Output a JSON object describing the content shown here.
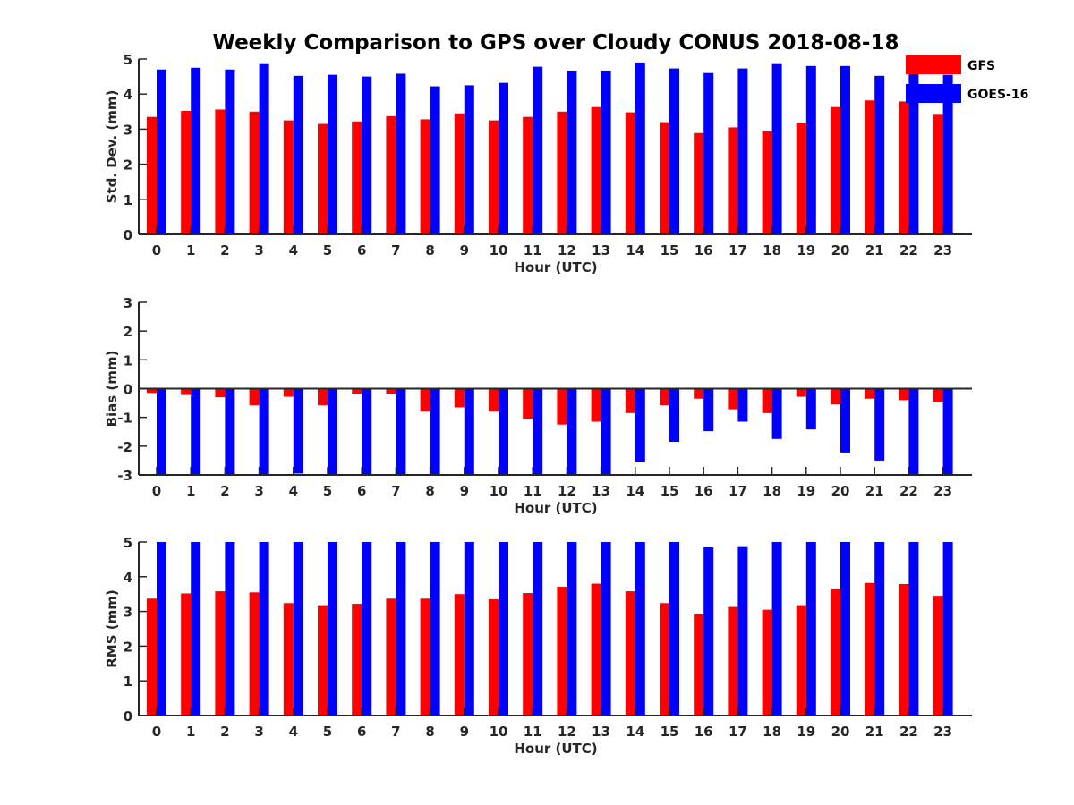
{
  "title": "Weekly Comparison to GPS over Cloudy CONUS 2018-08-18",
  "legend": [
    {
      "label": "GFS",
      "color": "#ff0000"
    },
    {
      "label": "GOES-16",
      "color": "#0000ff"
    }
  ],
  "chart_data": [
    {
      "type": "bar",
      "ylabel": "Std. Dev. (mm)",
      "xlabel": "Hour (UTC)",
      "ylim": [
        0,
        5
      ],
      "yticks": [
        "0",
        "1",
        "2",
        "3",
        "4",
        "5"
      ],
      "categories": [
        "0",
        "1",
        "2",
        "3",
        "4",
        "5",
        "6",
        "7",
        "8",
        "9",
        "10",
        "11",
        "12",
        "13",
        "14",
        "15",
        "16",
        "17",
        "18",
        "19",
        "20",
        "21",
        "22",
        "23"
      ],
      "series": [
        {
          "name": "GFS",
          "values": [
            3.35,
            3.52,
            3.56,
            3.5,
            3.25,
            3.15,
            3.22,
            3.37,
            3.28,
            3.45,
            3.25,
            3.35,
            3.5,
            3.63,
            3.48,
            3.2,
            2.89,
            3.05,
            2.94,
            3.18,
            3.63,
            3.82,
            3.79,
            3.41
          ]
        },
        {
          "name": "GOES-16",
          "values": [
            4.7,
            4.75,
            4.7,
            4.88,
            4.52,
            4.55,
            4.5,
            4.58,
            4.22,
            4.25,
            4.32,
            4.78,
            4.67,
            4.67,
            4.9,
            4.73,
            4.6,
            4.73,
            4.88,
            4.8,
            4.8,
            4.52,
            4.78,
            4.55
          ]
        }
      ]
    },
    {
      "type": "bar",
      "ylabel": "Bias (mm)",
      "xlabel": "Hour (UTC)",
      "ylim": [
        -3,
        3
      ],
      "yticks": [
        "-3",
        "-2",
        "-1",
        "0",
        "1",
        "2",
        "3"
      ],
      "categories": [
        "0",
        "1",
        "2",
        "3",
        "4",
        "5",
        "6",
        "7",
        "8",
        "9",
        "10",
        "11",
        "12",
        "13",
        "14",
        "15",
        "16",
        "17",
        "18",
        "19",
        "20",
        "21",
        "22",
        "23"
      ],
      "series": [
        {
          "name": "GFS",
          "values": [
            -0.15,
            -0.22,
            -0.3,
            -0.58,
            -0.28,
            -0.58,
            -0.18,
            -0.18,
            -0.8,
            -0.65,
            -0.8,
            -1.05,
            -1.25,
            -1.15,
            -0.85,
            -0.58,
            -0.35,
            -0.72,
            -0.85,
            -0.28,
            -0.55,
            -0.35,
            -0.4,
            -0.45
          ]
        },
        {
          "name": "GOES-16",
          "values": [
            -3.0,
            -3.0,
            -3.0,
            -3.0,
            -2.95,
            -3.0,
            -3.0,
            -3.0,
            -3.0,
            -3.0,
            -3.0,
            -3.0,
            -3.0,
            -3.0,
            -2.55,
            -1.85,
            -1.48,
            -1.15,
            -1.75,
            -1.42,
            -2.22,
            -2.5,
            -3.0,
            -3.0
          ]
        }
      ]
    },
    {
      "type": "bar",
      "ylabel": "RMS (mm)",
      "xlabel": "Hour (UTC)",
      "ylim": [
        0,
        5
      ],
      "yticks": [
        "0",
        "1",
        "2",
        "3",
        "4",
        "5"
      ],
      "categories": [
        "0",
        "1",
        "2",
        "3",
        "4",
        "5",
        "6",
        "7",
        "8",
        "9",
        "10",
        "11",
        "12",
        "13",
        "14",
        "15",
        "16",
        "17",
        "18",
        "19",
        "20",
        "21",
        "22",
        "23"
      ],
      "series": [
        {
          "name": "GFS",
          "values": [
            3.37,
            3.52,
            3.58,
            3.55,
            3.24,
            3.18,
            3.22,
            3.37,
            3.37,
            3.5,
            3.35,
            3.53,
            3.71,
            3.8,
            3.58,
            3.24,
            2.92,
            3.13,
            3.05,
            3.18,
            3.65,
            3.82,
            3.79,
            3.45
          ]
        },
        {
          "name": "GOES-16",
          "values": [
            5.0,
            5.0,
            5.0,
            5.0,
            5.0,
            5.0,
            5.0,
            5.0,
            5.0,
            5.0,
            5.0,
            5.0,
            5.0,
            5.0,
            5.0,
            5.0,
            4.85,
            4.88,
            5.0,
            5.0,
            5.0,
            5.0,
            5.0,
            5.0
          ]
        }
      ]
    }
  ]
}
